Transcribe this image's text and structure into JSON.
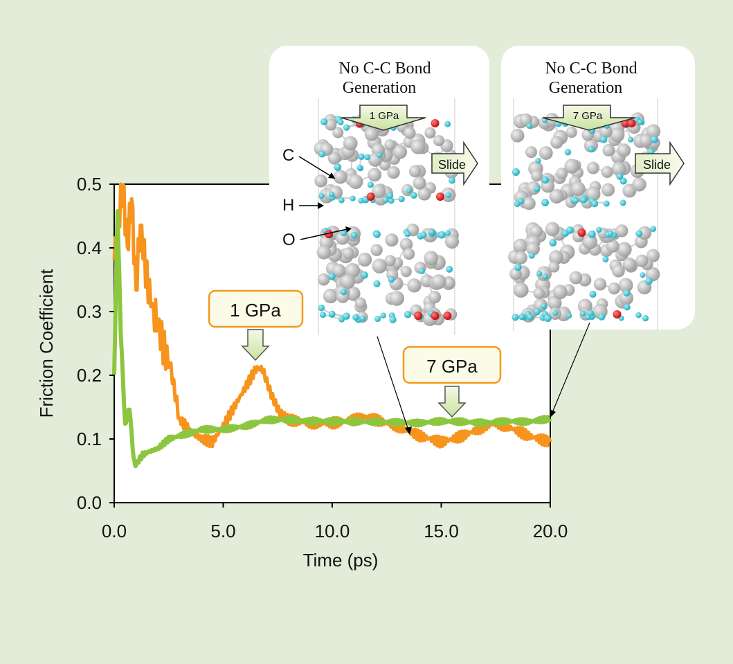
{
  "chart_data": {
    "type": "line",
    "title": "",
    "xlabel": "Time (ps)",
    "ylabel": "Friction Coefficient",
    "xlim": [
      0,
      20
    ],
    "ylim": [
      0,
      0.5
    ],
    "x_ticks": [
      "0.0",
      "5.0",
      "10.0",
      "15.0",
      "20.0"
    ],
    "y_ticks": [
      "0.0",
      "0.1",
      "0.2",
      "0.3",
      "0.4",
      "0.5"
    ],
    "grid": false,
    "legend": "none",
    "series": [
      {
        "name": "1 GPa",
        "color": "#f7941d",
        "x": [
          0,
          0.2,
          0.4,
          0.6,
          0.8,
          1.0,
          1.2,
          1.5,
          1.8,
          2.0,
          2.3,
          2.6,
          3.0,
          3.3,
          3.6,
          4.0,
          4.5,
          5.0,
          5.5,
          6.0,
          6.5,
          6.8,
          7.2,
          7.6,
          8.0,
          9.0,
          10.0,
          11.0,
          11.5,
          12.0,
          13.0,
          14.0,
          14.5,
          15.0,
          16.0,
          17.0,
          17.5,
          18.0,
          19.0,
          20.0
        ],
        "y": [
          0.38,
          0.44,
          0.5,
          0.4,
          0.48,
          0.33,
          0.44,
          0.35,
          0.3,
          0.28,
          0.24,
          0.21,
          0.13,
          0.12,
          0.11,
          0.1,
          0.095,
          0.12,
          0.15,
          0.18,
          0.21,
          0.21,
          0.17,
          0.14,
          0.13,
          0.125,
          0.125,
          0.13,
          0.135,
          0.13,
          0.12,
          0.105,
          0.1,
          0.095,
          0.105,
          0.12,
          0.125,
          0.12,
          0.105,
          0.095
        ]
      },
      {
        "name": "7 GPa",
        "color": "#8cc63f",
        "x": [
          0,
          0.15,
          0.3,
          0.5,
          0.7,
          0.9,
          1.0,
          1.3,
          1.6,
          2.0,
          2.5,
          3.0,
          3.5,
          4.0,
          5.0,
          6.0,
          7.0,
          8.0,
          9.0,
          10.0,
          12.0,
          14.0,
          15.0,
          16.0,
          17.0,
          18.0,
          19.0,
          20.0
        ],
        "y": [
          0.2,
          0.46,
          0.27,
          0.12,
          0.15,
          0.065,
          0.06,
          0.075,
          0.08,
          0.085,
          0.1,
          0.105,
          0.11,
          0.115,
          0.115,
          0.12,
          0.13,
          0.13,
          0.128,
          0.128,
          0.127,
          0.125,
          0.128,
          0.127,
          0.125,
          0.128,
          0.127,
          0.132
        ]
      }
    ],
    "annotations": [
      {
        "text": "1 GPa",
        "points_to_x": 6.5,
        "points_to_y": 0.21
      },
      {
        "text": "7 GPa",
        "points_to_x": 15.5,
        "points_to_y": 0.13
      }
    ]
  },
  "insets": [
    {
      "title_line1": "No C-C Bond",
      "title_line2": "Generation",
      "pressure_label": "1 GPa",
      "slide_label": "Slide",
      "atom_labels": [
        "C",
        "H",
        "O"
      ]
    },
    {
      "title_line1": "No C-C Bond",
      "title_line2": "Generation",
      "pressure_label": "7 GPa",
      "slide_label": "Slide"
    }
  ],
  "colors": {
    "background": "#e3ecd9",
    "carbon": "#b4b4b4",
    "hydrogen": "#3cc6d6",
    "oxygen": "#e01010",
    "callout_border": "#f39a1e",
    "callout_fill": "#fbfbe8",
    "arrow_fill": "#e2f0c4"
  }
}
